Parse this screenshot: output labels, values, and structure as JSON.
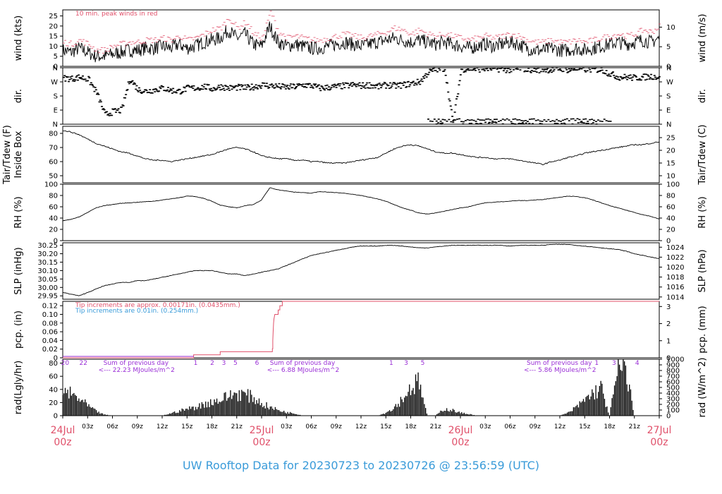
{
  "chart_data": {
    "type": "line",
    "title": "UW Rooftop Data for 20230723  to  20230726 @ 23:56:59  (UTC)",
    "x_range": [
      "2023-07-24T00:00Z",
      "2023-07-27T00:00Z"
    ],
    "x_hour_ticks": [
      "03z",
      "06z",
      "09z",
      "12z",
      "15z",
      "18z",
      "21z",
      "03z",
      "06z",
      "09z",
      "12z",
      "15z",
      "18z",
      "21z",
      "03z",
      "06z",
      "09z",
      "12z",
      "15z",
      "18z",
      "21z"
    ],
    "x_day_labels": [
      {
        "day": "24Jul",
        "time": "00z"
      },
      {
        "day": "25Jul",
        "time": "00z"
      },
      {
        "day": "26Jul",
        "time": "00z"
      },
      {
        "day": "27Jul",
        "time": "00z"
      }
    ],
    "panels": [
      {
        "id": "wind",
        "ylabel_left": "wind (kts)",
        "ylabel_right": "wind (m/s)",
        "ylim": [
          0,
          28
        ],
        "left_ticks": [
          "0",
          "5",
          "10",
          "15",
          "20",
          "25"
        ],
        "right_ticks": [
          "0",
          "5",
          "10"
        ],
        "annotation": "10 min. peak winds in red",
        "series": [
          {
            "values_kts_hourly": [
              8,
              7,
              9,
              7,
              5,
              5,
              6,
              7,
              8,
              8,
              9,
              9,
              10,
              9,
              11,
              9,
              10,
              12,
              13,
              14,
              18,
              14,
              16,
              11,
              10,
              20,
              12,
              10,
              11,
              10,
              9,
              9,
              10,
              11,
              12,
              11,
              10,
              11,
              12,
              13,
              14,
              13,
              12,
              13,
              12,
              11,
              12,
              11,
              10,
              9,
              10,
              11,
              10,
              11,
              12,
              11,
              9,
              8,
              8,
              9,
              8,
              8,
              9,
              8,
              9,
              10,
              11,
              12,
              11,
              12,
              13,
              12,
              14
            ]
          },
          {
            "name": "10 min. peak winds",
            "color": "#e0506a",
            "values_kts_hourly": [
              12,
              11,
              13,
              11,
              8,
              8,
              10,
              11,
              12,
              12,
              13,
              13,
              14,
              13,
              15,
              13,
              14,
              16,
              18,
              19,
              24,
              19,
              22,
              16,
              14,
              27,
              17,
              14,
              15,
              14,
              13,
              13,
              14,
              15,
              16,
              15,
              14,
              15,
              16,
              17,
              19,
              18,
              16,
              18,
              16,
              15,
              16,
              15,
              14,
              13,
              14,
              15,
              14,
              15,
              16,
              15,
              13,
              12,
              12,
              13,
              12,
              12,
              13,
              12,
              13,
              14,
              15,
              16,
              15,
              16,
              18,
              17,
              20
            ]
          }
        ]
      },
      {
        "id": "dir",
        "ylabel_left": "dir.",
        "ylabel_right": "dir.",
        "ylim": [
          0,
          360
        ],
        "left_ticks": [
          "N",
          "E",
          "S",
          "W",
          "N"
        ],
        "right_ticks": [
          "N",
          "E",
          "S",
          "W",
          "N"
        ],
        "series": [
          {
            "values_deg_hourly": [
              295,
              290,
              300,
              285,
              200,
              60,
              80,
              90,
              290,
              220,
              210,
              220,
              230,
              215,
              210,
              230,
              230,
              240,
              225,
              240,
              230,
              235,
              230,
              240,
              250,
              245,
              240,
              235,
              240,
              250,
              245,
              230,
              235,
              240,
              245,
              250,
              245,
              250,
              240,
              250,
              245,
              250,
              260,
              270,
              330,
              350,
              355,
              5,
              350,
              355,
              350,
              355,
              355,
              350,
              345,
              355,
              350,
              345,
              350,
              345,
              355,
              345,
              355,
              350,
              350,
              345,
              320,
              300,
              300,
              295,
              300,
              305,
              300
            ]
          }
        ]
      },
      {
        "id": "temp",
        "ylabel_left": "Tair/Tdew (F)\nInside Box",
        "ylabel_right": "Tair/Tdew (C)",
        "ylim": [
          45,
          85
        ],
        "left_ticks": [
          "50",
          "60",
          "70",
          "80"
        ],
        "right_ticks": [
          "10",
          "15",
          "20",
          "25"
        ],
        "series": [
          {
            "values_F_hourly": [
              82,
              81,
              79,
              76,
              73,
              71,
              69,
              67,
              66,
              64,
              62,
              61,
              61,
              60,
              61,
              62,
              63,
              64,
              65,
              67,
              69,
              70,
              69,
              67,
              64,
              63,
              62,
              62,
              61,
              61,
              60,
              60,
              59,
              59,
              59,
              60,
              61,
              62,
              63,
              66,
              69,
              71,
              72,
              71,
              69,
              67,
              66,
              66,
              65,
              64,
              63,
              63,
              62,
              62,
              62,
              61,
              60,
              59,
              58,
              60,
              61,
              63,
              64,
              66,
              67,
              68,
              69,
              70,
              71,
              72,
              72,
              73,
              74
            ]
          }
        ]
      },
      {
        "id": "rh",
        "ylabel_left": "RH (%)",
        "ylabel_right": "RH (%)",
        "ylim": [
          0,
          100
        ],
        "left_ticks": [
          "0",
          "20",
          "40",
          "60",
          "80",
          "100"
        ],
        "right_ticks": [
          "0",
          "20",
          "40",
          "60",
          "80",
          "100"
        ],
        "series": [
          {
            "values_pct_hourly": [
              35,
              38,
              42,
              50,
              58,
              62,
              64,
              66,
              67,
              68,
              69,
              70,
              72,
              74,
              76,
              79,
              78,
              75,
              70,
              63,
              60,
              58,
              62,
              64,
              72,
              94,
              90,
              88,
              86,
              85,
              84,
              87,
              86,
              85,
              84,
              82,
              80,
              77,
              74,
              70,
              64,
              58,
              54,
              49,
              47,
              49,
              52,
              55,
              58,
              60,
              64,
              67,
              68,
              69,
              70,
              71,
              71,
              72,
              73,
              75,
              77,
              79,
              78,
              76,
              72,
              67,
              62,
              58,
              54,
              50,
              46,
              43,
              38
            ]
          }
        ]
      },
      {
        "id": "slp",
        "ylabel_left": "SLP (inHg)",
        "ylabel_right": "SLP (hPa)",
        "ylim": [
          29.93,
          30.265
        ],
        "left_ticks": [
          "29.95",
          "30.00",
          "30.05",
          "30.10",
          "30.15",
          "30.20",
          "30.25"
        ],
        "right_ticks": [
          "1014",
          "1016",
          "1018",
          "1020",
          "1022",
          "1024"
        ],
        "series": [
          {
            "values_inHg_hourly": [
              29.97,
              29.96,
              29.95,
              29.97,
              29.99,
              30.01,
              30.02,
              30.03,
              30.03,
              30.04,
              30.04,
              30.05,
              30.06,
              30.07,
              30.08,
              30.09,
              30.1,
              30.1,
              30.1,
              30.09,
              30.08,
              30.08,
              30.07,
              30.08,
              30.09,
              30.1,
              30.11,
              30.13,
              30.15,
              30.17,
              30.19,
              30.2,
              30.21,
              30.22,
              30.23,
              30.24,
              30.245,
              30.245,
              30.245,
              30.25,
              30.25,
              30.245,
              30.24,
              30.235,
              30.235,
              30.24,
              30.245,
              30.25,
              30.25,
              30.25,
              30.25,
              30.25,
              30.25,
              30.25,
              30.245,
              30.25,
              30.25,
              30.25,
              30.25,
              30.255,
              30.255,
              30.255,
              30.25,
              30.245,
              30.24,
              30.235,
              30.23,
              30.225,
              30.215,
              30.2,
              30.19,
              30.18,
              30.17
            ]
          }
        ]
      },
      {
        "id": "pcp",
        "ylabel_left": "pcp. (in)",
        "ylabel_right": "pcp. (mm)",
        "ylim": [
          0,
          0.13
        ],
        "left_ticks": [
          "0",
          "0.02",
          "0.04",
          "0.06",
          "0.08",
          "0.10",
          "0.12"
        ],
        "right_ticks": [
          "0",
          "1",
          "2",
          "3"
        ],
        "annotations": [
          {
            "text": "Tip increments are approx. 0.00171in. (0.0435mm.)",
            "color": "#e0506a"
          },
          {
            "text": "Tip increments are 0.01in. (0.254mm.)",
            "color": "#3a9bd9"
          }
        ],
        "series": [
          {
            "name": "cumulative precip",
            "color": "#e0506a",
            "steps_hour_value": [
              [
                0,
                0
              ],
              [
                15.8,
                0
              ],
              [
                15.8,
                0.007
              ],
              [
                19.0,
                0.007
              ],
              [
                19.0,
                0.014
              ],
              [
                25.3,
                0.014
              ],
              [
                25.3,
                0.021
              ],
              [
                25.35,
                0.021
              ],
              [
                25.35,
                0.04
              ],
              [
                25.4,
                0.06
              ],
              [
                25.45,
                0.08
              ],
              [
                25.5,
                0.09
              ],
              [
                25.6,
                0.1
              ],
              [
                26.0,
                0.1
              ],
              [
                26.0,
                0.11
              ],
              [
                26.2,
                0.11
              ],
              [
                26.2,
                0.12
              ],
              [
                26.5,
                0.12
              ],
              [
                26.5,
                0.13
              ],
              [
                72,
                0.13
              ]
            ]
          }
        ]
      },
      {
        "id": "rad",
        "ylabel_left": "rad(Lgly/hr)",
        "ylabel_right": "rad (W/m^2)",
        "ylim": [
          0,
          86
        ],
        "left_ticks": [
          "0",
          "20",
          "40",
          "60",
          "80"
        ],
        "right_ticks": [
          "0",
          "100",
          "200",
          "300",
          "400",
          "500",
          "600",
          "700",
          "800",
          "900",
          "1000"
        ],
        "day_notes": [
          {
            "text": "Sum of previous day",
            "sum": "<--- 22.23 MJoules/m^2"
          },
          {
            "text": "Sum of previous day",
            "sum": "<--- 6.88 MJoules/m^2"
          },
          {
            "text": "Sum of previous day",
            "sum": "<--- 5.86 MJoules/m^2"
          }
        ],
        "purple_hour_labels": [
          "20",
          "22",
          "1",
          "2",
          "3",
          "5",
          "6",
          "1",
          "3",
          "5",
          "1",
          "3",
          "4"
        ],
        "series": [
          {
            "values_lgly_hourly": [
              45,
              38,
              30,
              18,
              8,
              2,
              0,
              0,
              0,
              0,
              0,
              0,
              0,
              4,
              8,
              12,
              15,
              20,
              25,
              28,
              35,
              40,
              38,
              32,
              22,
              15,
              10,
              6,
              4,
              0,
              0,
              0,
              0,
              0,
              0,
              0,
              0,
              0,
              0,
              5,
              15,
              30,
              50,
              60,
              0,
              0,
              12,
              10,
              5,
              3,
              0,
              0,
              0,
              0,
              0,
              0,
              0,
              0,
              0,
              0,
              0,
              5,
              15,
              28,
              40,
              50,
              0,
              80,
              85,
              0,
              0,
              0,
              0
            ]
          }
        ]
      }
    ],
    "footer": "UW Rooftop Data for 20230723  to  20230726 @ 23:56:59  (UTC)"
  }
}
